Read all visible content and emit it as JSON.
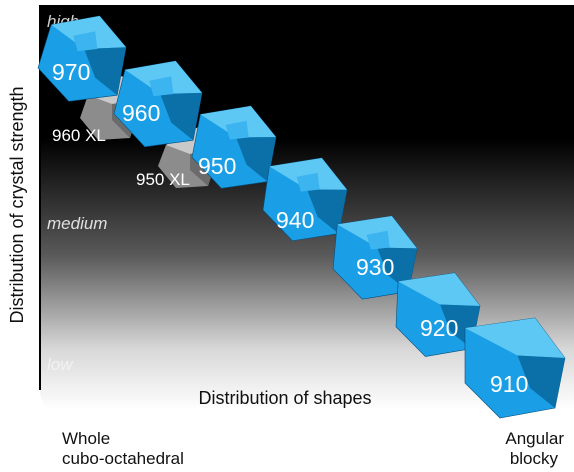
{
  "levels": {
    "high": "high",
    "medium": "medium",
    "low": "low"
  },
  "axes": {
    "y_label": "Distribution of crystal strength",
    "x_label": "Distribution of shapes",
    "left_label_line1": "Whole",
    "left_label_line2": "cubo-octahedral",
    "right_label_line1": "Angular",
    "right_label_line2": "blocky"
  },
  "crystals": [
    {
      "label": "970"
    },
    {
      "label": "960"
    },
    {
      "label": "950"
    },
    {
      "label": "940"
    },
    {
      "label": "930"
    },
    {
      "label": "920"
    },
    {
      "label": "910"
    }
  ],
  "xl_crystals": [
    {
      "label": "960 XL"
    },
    {
      "label": "950 XL"
    }
  ],
  "colors": {
    "crystal_front": "#1a9ee6",
    "crystal_top": "#5ec8f5",
    "crystal_side": "#0b6fa8",
    "crystal_dark": "#06507e",
    "xl_front": "#9a9a9a",
    "xl_top": "#cfcfcf",
    "xl_side": "#6b6b6b",
    "background_top": "#000000",
    "background_bottom": "#ffffff"
  }
}
